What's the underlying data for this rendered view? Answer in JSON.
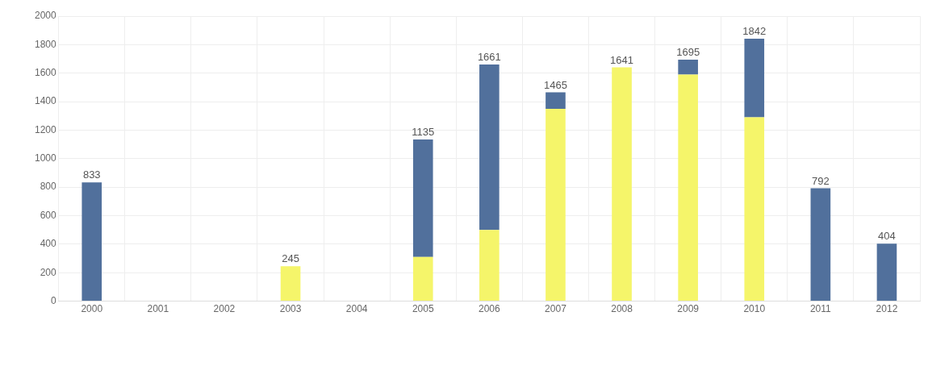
{
  "chart_data": {
    "type": "bar",
    "stacked": true,
    "categories": [
      "2000",
      "2001",
      "2002",
      "2003",
      "2004",
      "2005",
      "2006",
      "2007",
      "2008",
      "2009",
      "2010",
      "2011",
      "2012"
    ],
    "series": [
      {
        "color": "#f5f56a",
        "values": [
          null,
          null,
          null,
          245,
          null,
          310,
          500,
          1350,
          1641,
          1590,
          1290,
          null,
          null
        ]
      },
      {
        "color": "#51709c",
        "values": [
          833,
          null,
          null,
          null,
          null,
          825,
          1161,
          115,
          null,
          105,
          552,
          792,
          404
        ]
      }
    ],
    "totals": [
      "833",
      null,
      null,
      "245",
      null,
      "1135",
      "1661",
      "1465",
      "1641",
      "1695",
      "1842",
      "792",
      "404"
    ],
    "ylim": [
      0,
      2000
    ],
    "yticks": [
      0,
      200,
      400,
      600,
      800,
      1000,
      1200,
      1400,
      1600,
      1800,
      2000
    ],
    "grid": true,
    "legend": false
  }
}
